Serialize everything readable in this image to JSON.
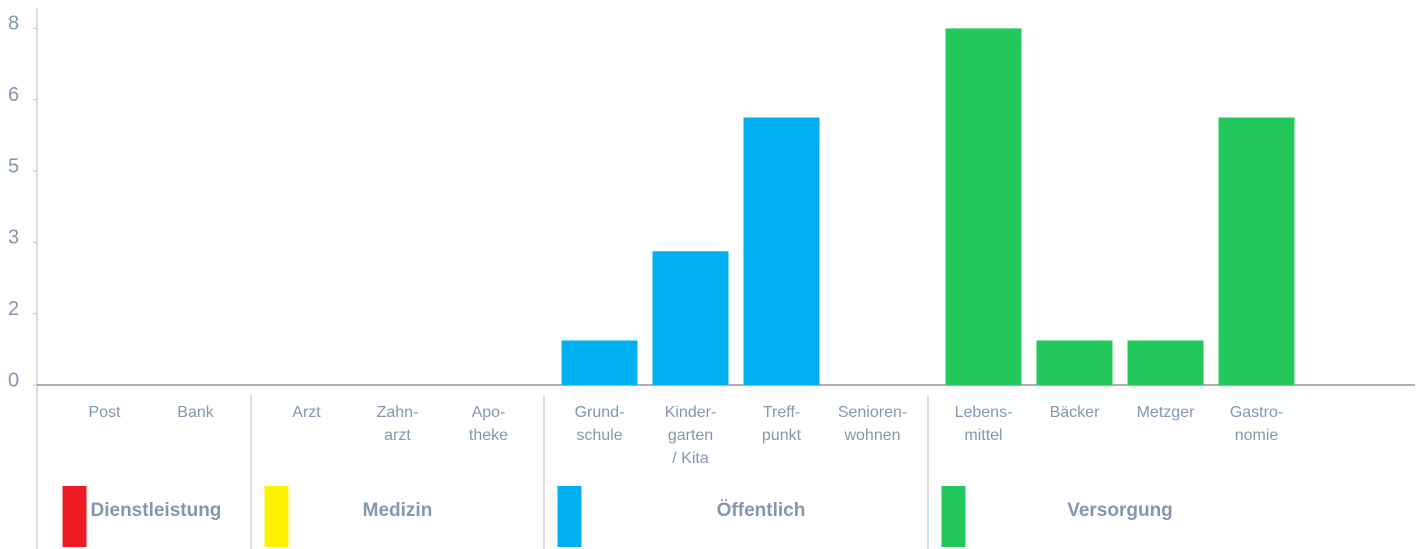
{
  "chart_data": {
    "type": "bar",
    "categories": [
      "Post",
      "Bank",
      "Arzt",
      "Zahn-\narzt",
      "Apo-\ntheke",
      "Grund-\nschule",
      "Kinder-\ngarten\n/ Kita",
      "Treff-\npunkt",
      "Senioren-\nwohnen",
      "Lebens-\nmittel",
      "Bäcker",
      "Metzger",
      "Gastro-\nnomie"
    ],
    "series": [
      {
        "name": "Dienstleistung",
        "color": "#ed1c24",
        "values": [
          0,
          0,
          null,
          null,
          null,
          null,
          null,
          null,
          null,
          null,
          null,
          null,
          null
        ]
      },
      {
        "name": "Medizin",
        "color": "#fff200",
        "values": [
          null,
          null,
          0,
          0,
          0,
          null,
          null,
          null,
          null,
          null,
          null,
          null,
          null
        ]
      },
      {
        "name": "Öffentlich",
        "color": "#00b0f0",
        "values": [
          null,
          null,
          null,
          null,
          null,
          1,
          3,
          6,
          0,
          null,
          null,
          null,
          null
        ]
      },
      {
        "name": "Versorgung",
        "color": "#22c95a",
        "values": [
          null,
          null,
          null,
          null,
          null,
          null,
          null,
          null,
          null,
          8,
          1,
          1,
          6
        ]
      }
    ],
    "ylim": [
      0,
      8.3
    ],
    "yticks": [
      {
        "value": 0,
        "label": "0"
      },
      {
        "value": 1.6,
        "label": "2"
      },
      {
        "value": 3.2,
        "label": "3"
      },
      {
        "value": 4.8,
        "label": "5"
      },
      {
        "value": 6.4,
        "label": "6"
      },
      {
        "value": 8,
        "label": "8"
      }
    ]
  }
}
